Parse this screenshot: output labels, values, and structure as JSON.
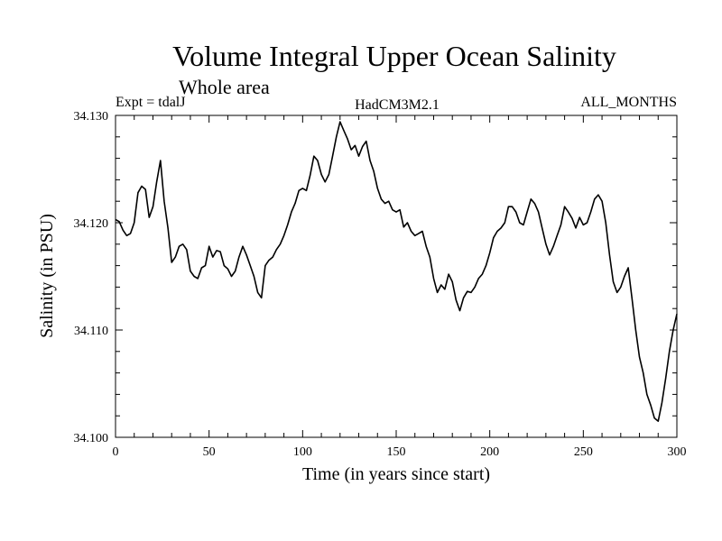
{
  "chart_data": {
    "type": "line",
    "title": "Volume Integral Upper Ocean Salinity",
    "subtitle": "Whole area",
    "annotations": {
      "left": "Expt = tdalJ",
      "center": "HadCM3M2.1",
      "right": "ALL_MONTHS"
    },
    "xlabel": "Time (in years since start)",
    "ylabel": "Salinity (in PSU)",
    "xlim": [
      0,
      300
    ],
    "ylim": [
      34.1,
      34.13
    ],
    "xticks": [
      0,
      50,
      100,
      150,
      200,
      250,
      300
    ],
    "xtick_labels": [
      "0",
      "50",
      "100",
      "150",
      "200",
      "250",
      "300"
    ],
    "yticks": [
      34.1,
      34.11,
      34.12,
      34.13
    ],
    "ytick_labels": [
      "34.100",
      "34.110",
      "34.120",
      "34.130"
    ],
    "grid": false,
    "line_color": "#000000",
    "series": [
      {
        "x": [
          0,
          2,
          4,
          6,
          8,
          10,
          12,
          14,
          16,
          18,
          20,
          22,
          24,
          26,
          28,
          30,
          32,
          34,
          36,
          38,
          40,
          42,
          44,
          46,
          48,
          50,
          52,
          54,
          56,
          58,
          60,
          62,
          64,
          66,
          68,
          70,
          72,
          74,
          76,
          78,
          80,
          82,
          84,
          86,
          88,
          90,
          92,
          94,
          96,
          98,
          100,
          102,
          104,
          106,
          108,
          110,
          112,
          114,
          116,
          118,
          120,
          122,
          124,
          126,
          128,
          130,
          132,
          134,
          136,
          138,
          140,
          142,
          144,
          146,
          148,
          150,
          152,
          154,
          156,
          158,
          160,
          162,
          164,
          166,
          168,
          170,
          172,
          174,
          176,
          178,
          180,
          182,
          184,
          186,
          188,
          190,
          192,
          194,
          196,
          198,
          200,
          202,
          204,
          206,
          208,
          210,
          212,
          214,
          216,
          218,
          220,
          222,
          224,
          226,
          228,
          230,
          232,
          234,
          236,
          238,
          240,
          242,
          244,
          246,
          248,
          250,
          252,
          254,
          256,
          258,
          260,
          262,
          264,
          266,
          268,
          270,
          272,
          274,
          276,
          278,
          280,
          282,
          284,
          286,
          288,
          290,
          292,
          294,
          296,
          298,
          300
        ],
        "values": [
          34.1203,
          34.1201,
          34.1193,
          34.1188,
          34.119,
          34.12,
          34.1228,
          34.1234,
          34.1231,
          34.1205,
          34.1215,
          34.1238,
          34.1258,
          34.122,
          34.1195,
          34.1163,
          34.1168,
          34.1178,
          34.118,
          34.1175,
          34.1155,
          34.115,
          34.1148,
          34.1158,
          34.116,
          34.1178,
          34.1168,
          34.1174,
          34.1173,
          34.116,
          34.1157,
          34.115,
          34.1155,
          34.1168,
          34.1178,
          34.117,
          34.116,
          34.115,
          34.1135,
          34.113,
          34.116,
          34.1165,
          34.1168,
          34.1175,
          34.118,
          34.1188,
          34.1198,
          34.121,
          34.1218,
          34.123,
          34.1232,
          34.123,
          34.1244,
          34.1262,
          34.1258,
          34.1245,
          34.1238,
          34.1245,
          34.1262,
          34.128,
          34.1294,
          34.1286,
          34.1278,
          34.1268,
          34.1272,
          34.1262,
          34.1271,
          34.1276,
          34.1258,
          34.1248,
          34.1232,
          34.1222,
          34.1218,
          34.122,
          34.1212,
          34.121,
          34.1212,
          34.1196,
          34.12,
          34.1192,
          34.1188,
          34.119,
          34.1192,
          34.1178,
          34.1168,
          34.1148,
          34.1135,
          34.1142,
          34.1138,
          34.1152,
          34.1145,
          34.1128,
          34.1118,
          34.113,
          34.1136,
          34.1135,
          34.114,
          34.1148,
          34.1152,
          34.116,
          34.1172,
          34.1186,
          34.1192,
          34.1195,
          34.12,
          34.1215,
          34.1215,
          34.121,
          34.12,
          34.1198,
          34.121,
          34.1222,
          34.1218,
          34.121,
          34.1195,
          34.118,
          34.117,
          34.1178,
          34.1188,
          34.1198,
          34.1215,
          34.121,
          34.1204,
          34.1195,
          34.1205,
          34.1198,
          34.12,
          34.121,
          34.1222,
          34.1226,
          34.122,
          34.12,
          34.117,
          34.1145,
          34.1135,
          34.114,
          34.115,
          34.1158,
          34.113,
          34.11,
          34.1075,
          34.106,
          34.104,
          34.103,
          34.1018,
          34.1015,
          34.1032,
          34.1055,
          34.108,
          34.11,
          34.1115
        ]
      }
    ]
  }
}
